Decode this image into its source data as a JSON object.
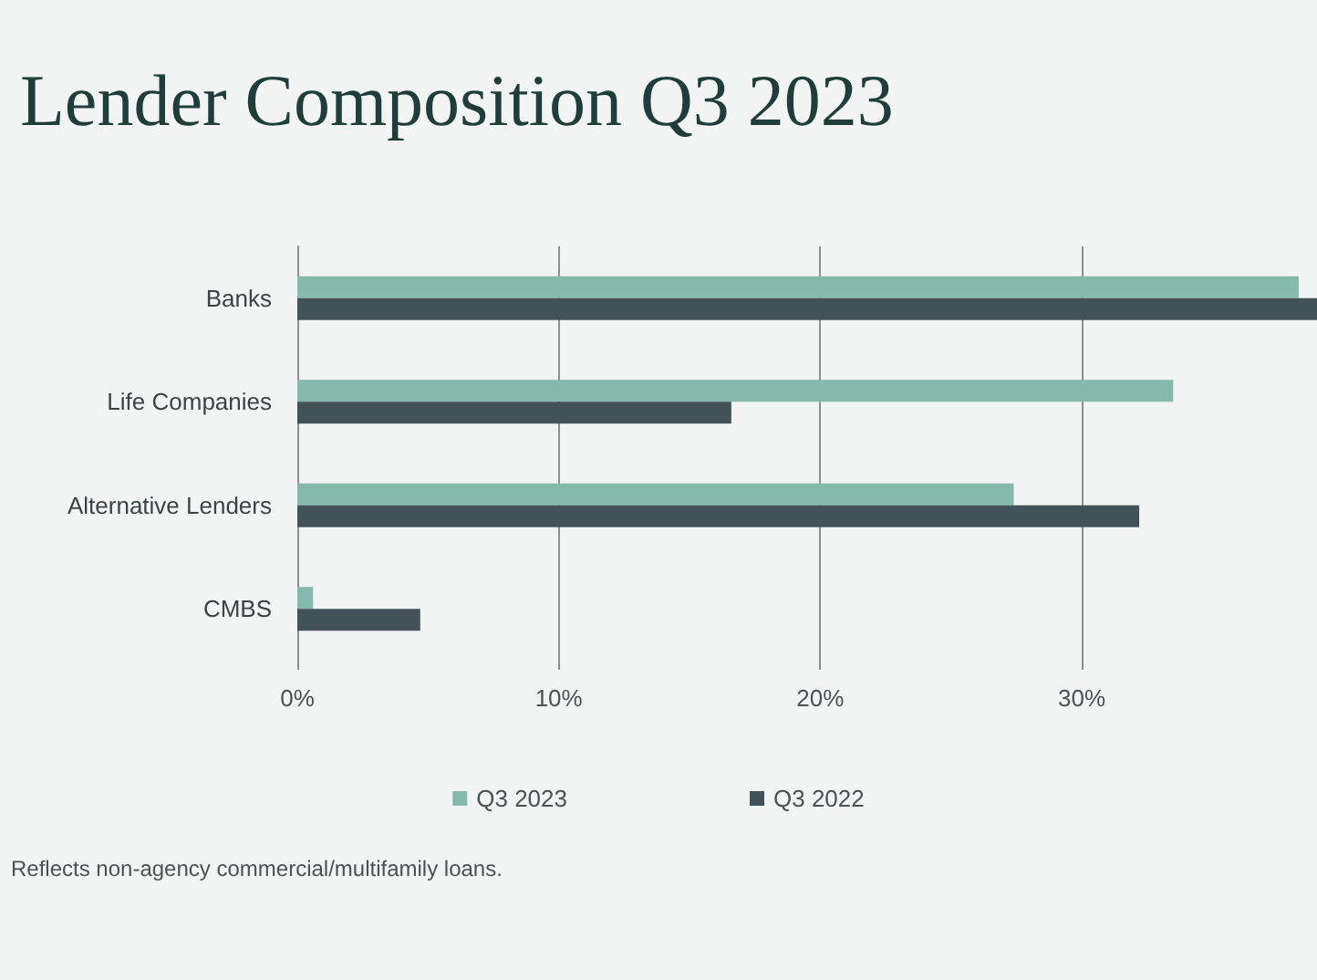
{
  "chart_data": {
    "type": "bar",
    "orientation": "horizontal",
    "title": "Lender Composition Q3 2023",
    "categories": [
      "Banks",
      "Life Companies",
      "Alternative Lenders",
      "CMBS"
    ],
    "series": [
      {
        "name": "Q3 2023",
        "color": "#85b9ab",
        "values": [
          38.3,
          33.5,
          27.4,
          0.6
        ]
      },
      {
        "name": "Q3 2022",
        "color": "#435257",
        "values": [
          39,
          16.6,
          32.2,
          4.7
        ]
      }
    ],
    "xlim": [
      0,
      39
    ],
    "xticks": [
      {
        "value": 0,
        "label": "0%"
      },
      {
        "value": 10,
        "label": "10%"
      },
      {
        "value": 20,
        "label": "20%"
      },
      {
        "value": 30,
        "label": "30%"
      }
    ],
    "grid": "x",
    "legend": "bottom",
    "annotations": [
      "Reflects non-agency commercial/multifamily loans."
    ]
  }
}
